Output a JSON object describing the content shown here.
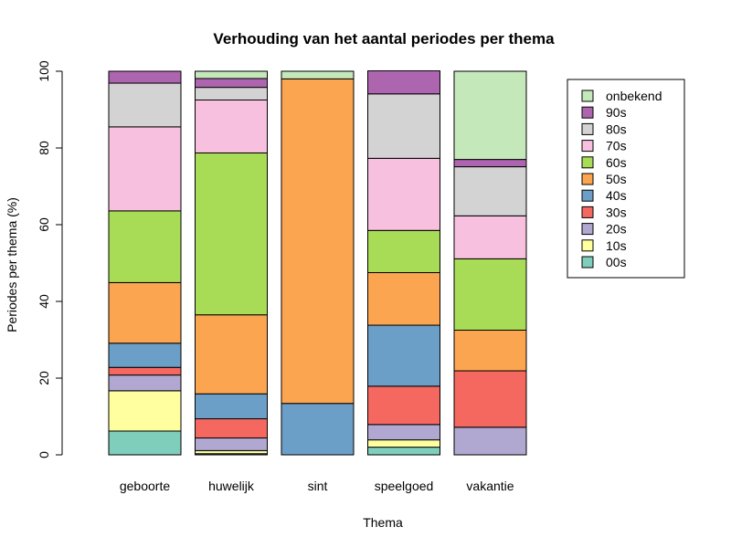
{
  "chart_data": {
    "type": "bar",
    "stacked": true,
    "title": "Verhouding van het aantal periodes per thema",
    "xlabel": "Thema",
    "ylabel": "Periodes per thema (%)",
    "ylim": [
      0,
      100
    ],
    "yticks": [
      "0",
      "20",
      "40",
      "60",
      "80",
      "100"
    ],
    "grid": false,
    "legend_position": "right",
    "categories": [
      "geboorte",
      "huwelijk",
      "sint",
      "speelgoed",
      "vakantie"
    ],
    "series": [
      {
        "name": "00s",
        "color": "#7FCDBB",
        "values": [
          6.2,
          0.3,
          0.0,
          2.0,
          0.0
        ]
      },
      {
        "name": "10s",
        "color": "#FFFFA0",
        "values": [
          10.5,
          0.8,
          0.0,
          1.9,
          0.0
        ]
      },
      {
        "name": "20s",
        "color": "#B0A8D0",
        "values": [
          4.1,
          3.3,
          0.0,
          4.0,
          7.2
        ]
      },
      {
        "name": "30s",
        "color": "#F4685F",
        "values": [
          2.0,
          5.0,
          0.0,
          10.0,
          14.7
        ]
      },
      {
        "name": "40s",
        "color": "#6B9FC8",
        "values": [
          6.3,
          6.5,
          13.4,
          15.9,
          0.0
        ]
      },
      {
        "name": "50s",
        "color": "#FBA550",
        "values": [
          15.8,
          20.6,
          84.6,
          13.7,
          10.6
        ]
      },
      {
        "name": "60s",
        "color": "#A8DC57",
        "values": [
          18.7,
          42.2,
          0.0,
          11.0,
          18.6
        ]
      },
      {
        "name": "70s",
        "color": "#F8C0DF",
        "values": [
          21.9,
          13.8,
          0.0,
          18.8,
          11.2
        ]
      },
      {
        "name": "80s",
        "color": "#D3D3D3",
        "values": [
          11.4,
          3.3,
          0.0,
          16.8,
          12.8
        ]
      },
      {
        "name": "90s",
        "color": "#AE65B0",
        "values": [
          3.1,
          2.3,
          0.0,
          6.0,
          1.9
        ]
      },
      {
        "name": "onbekend",
        "color": "#C4E8BA",
        "values": [
          0.0,
          1.9,
          2.0,
          0.0,
          23.0
        ]
      }
    ]
  }
}
